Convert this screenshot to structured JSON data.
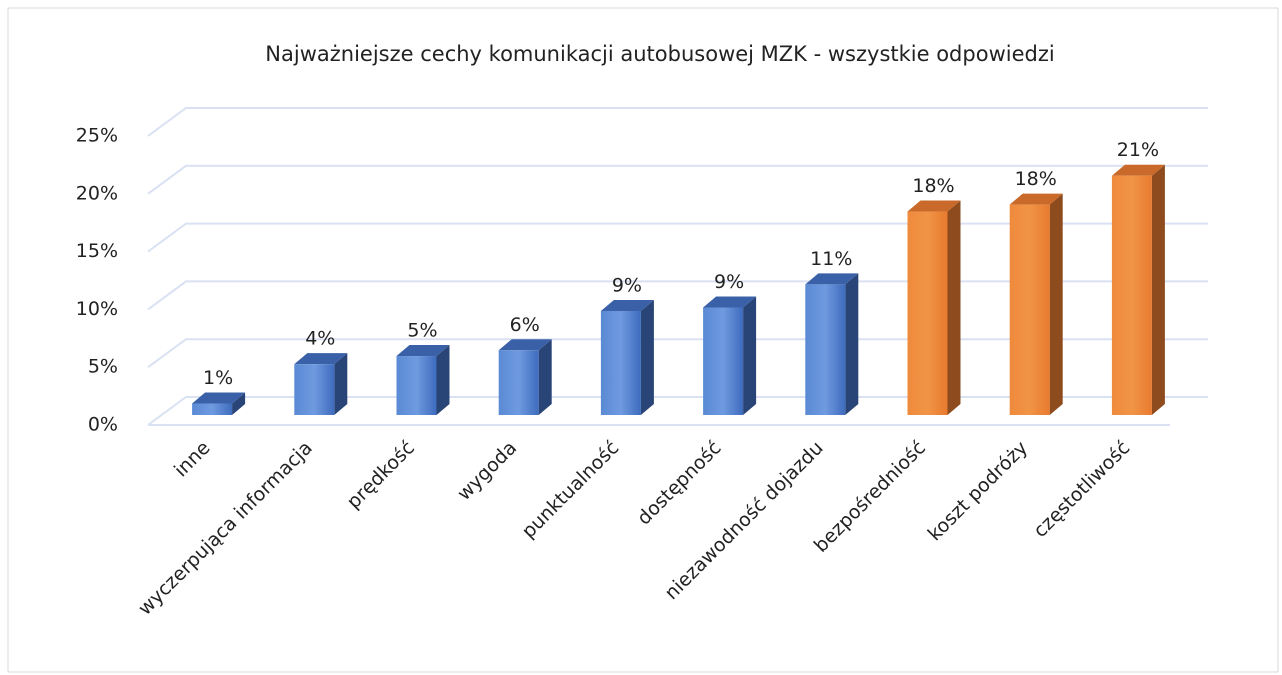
{
  "chart_data": {
    "type": "bar3d",
    "title": "Najważniejsze cechy komunikacji autobusowej MZK - wszystkie odpowiedzi",
    "categories": [
      "inne",
      "wyczerpująca informacja",
      "prędkość",
      "wygoda",
      "punktualność",
      "dostępność",
      "niezawodność dojazdu",
      "bezpośredniość",
      "koszt podróży",
      "częstotliwość"
    ],
    "values": [
      1.0,
      4.4,
      5.1,
      5.6,
      9.0,
      9.3,
      11.3,
      17.6,
      18.2,
      20.7
    ],
    "value_labels": [
      "1%",
      "4%",
      "5%",
      "6%",
      "9%",
      "9%",
      "11%",
      "18%",
      "18%",
      "21%"
    ],
    "colors": [
      "#4472c4",
      "#4472c4",
      "#4472c4",
      "#4472c4",
      "#4472c4",
      "#4472c4",
      "#4472c4",
      "#ed7d31",
      "#ed7d31",
      "#ed7d31"
    ],
    "ylim": [
      0,
      25
    ],
    "yticks": [
      {
        "value": 0,
        "label": "0%"
      },
      {
        "value": 5,
        "label": "5%"
      },
      {
        "value": 10,
        "label": "10%"
      },
      {
        "value": 15,
        "label": "15%"
      },
      {
        "value": 20,
        "label": "20%"
      },
      {
        "value": 25,
        "label": "25%"
      }
    ],
    "grid": true
  }
}
